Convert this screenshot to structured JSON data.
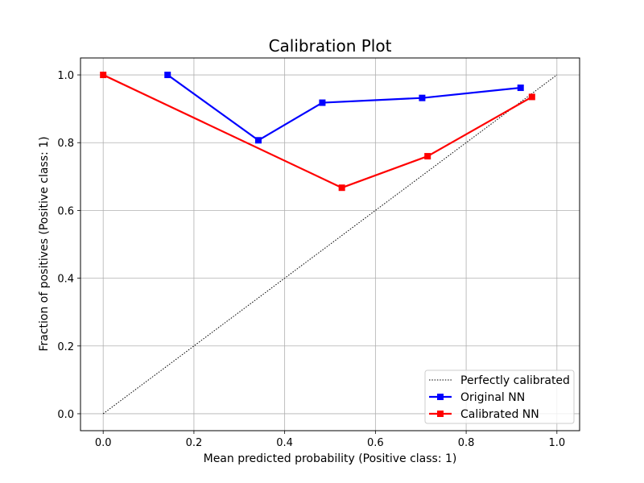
{
  "chart_data": {
    "type": "line",
    "title": "Calibration Plot",
    "xlabel": "Mean predicted probability (Positive class: 1)",
    "ylabel": "Fraction of positives (Positive class: 1)",
    "xlim": [
      -0.05,
      1.05
    ],
    "ylim": [
      -0.05,
      1.05
    ],
    "xticks": [
      0.0,
      0.2,
      0.4,
      0.6,
      0.8,
      1.0
    ],
    "xtick_labels": [
      "0.0",
      "0.2",
      "0.4",
      "0.6",
      "0.8",
      "1.0"
    ],
    "yticks": [
      0.0,
      0.2,
      0.4,
      0.6,
      0.8,
      1.0
    ],
    "ytick_labels": [
      "0.0",
      "0.2",
      "0.4",
      "0.6",
      "0.8",
      "1.0"
    ],
    "grid": true,
    "legend_position": "bottom-right",
    "series": [
      {
        "name": "Perfectly calibrated",
        "style": "dotted",
        "color": "#000000",
        "marker": "none",
        "x": [
          0.0,
          1.0
        ],
        "y": [
          0.0,
          1.0
        ]
      },
      {
        "name": "Original NN",
        "style": "solid",
        "color": "#0000ff",
        "marker": "square",
        "x": [
          0.142,
          0.342,
          0.483,
          0.703,
          0.92
        ],
        "y": [
          1.0,
          0.807,
          0.918,
          0.932,
          0.962
        ]
      },
      {
        "name": "Calibrated NN",
        "style": "solid",
        "color": "#ff0000",
        "marker": "square",
        "x": [
          0.0,
          0.526,
          0.715,
          0.945
        ],
        "y": [
          1.0,
          0.667,
          0.76,
          0.935
        ]
      }
    ]
  }
}
